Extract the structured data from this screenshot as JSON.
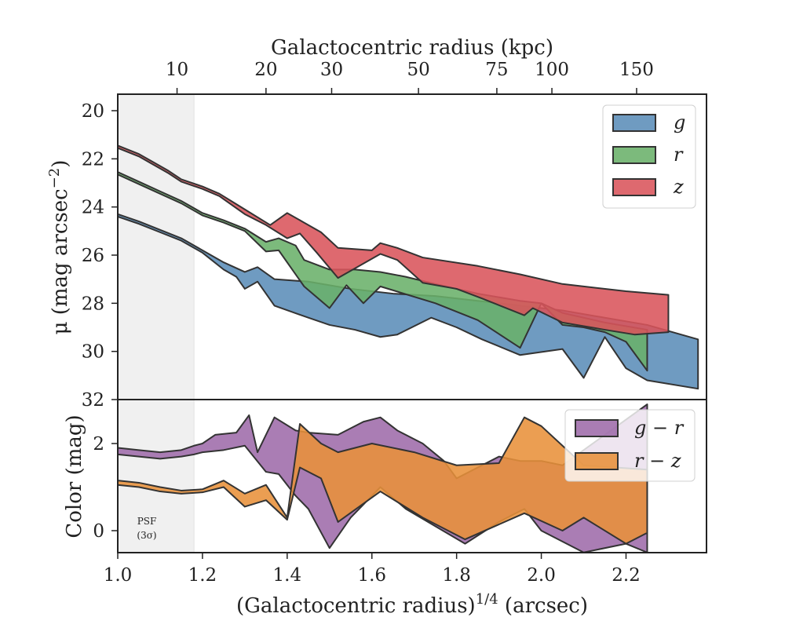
{
  "chart_data": [
    {
      "panel": "top",
      "type": "area",
      "top_axis_title": "Galactocentric radius (kpc)",
      "top_axis_ticks": [
        "10",
        "20",
        "30",
        "50",
        "75",
        "100",
        "150"
      ],
      "top_axis_tick_x": [
        1.14,
        1.35,
        1.505,
        1.71,
        1.895,
        2.025,
        2.225
      ],
      "ylabel": "μ (mag arcsec⁻²)",
      "ylim": [
        32,
        19.3
      ],
      "xlim": [
        1.0,
        2.39
      ],
      "y_ticks": [
        "20",
        "22",
        "24",
        "26",
        "28",
        "30",
        "32"
      ],
      "y_tick_values": [
        20,
        22,
        24,
        26,
        28,
        30,
        32
      ],
      "psf_region_x": [
        1.0,
        1.18
      ],
      "legend_position": "upper right",
      "series": [
        {
          "name": "g",
          "color": "#5b8db8",
          "upper": [
            [
              1.0,
              24.3
            ],
            [
              1.05,
              24.6
            ],
            [
              1.1,
              24.95
            ],
            [
              1.15,
              25.3
            ],
            [
              1.2,
              25.8
            ],
            [
              1.25,
              26.3
            ],
            [
              1.3,
              26.7
            ],
            [
              1.33,
              26.5
            ],
            [
              1.37,
              27.0
            ],
            [
              1.45,
              27.1
            ],
            [
              1.55,
              27.4
            ],
            [
              1.65,
              27.6
            ],
            [
              1.75,
              27.7
            ],
            [
              1.85,
              27.9
            ],
            [
              1.95,
              28.1
            ],
            [
              2.05,
              28.3
            ],
            [
              2.15,
              28.6
            ],
            [
              2.25,
              28.9
            ],
            [
              2.37,
              29.5
            ]
          ],
          "lower": [
            [
              1.0,
              24.4
            ],
            [
              1.05,
              24.7
            ],
            [
              1.1,
              25.05
            ],
            [
              1.15,
              25.4
            ],
            [
              1.2,
              25.9
            ],
            [
              1.25,
              26.6
            ],
            [
              1.28,
              26.9
            ],
            [
              1.3,
              27.4
            ],
            [
              1.33,
              27.1
            ],
            [
              1.37,
              28.1
            ],
            [
              1.45,
              28.6
            ],
            [
              1.5,
              28.9
            ],
            [
              1.56,
              29.1
            ],
            [
              1.62,
              29.4
            ],
            [
              1.66,
              29.3
            ],
            [
              1.74,
              28.6
            ],
            [
              1.8,
              29.0
            ],
            [
              1.86,
              29.5
            ],
            [
              1.95,
              30.15
            ],
            [
              2.05,
              29.9
            ],
            [
              2.1,
              31.1
            ],
            [
              2.15,
              29.4
            ],
            [
              2.2,
              30.7
            ],
            [
              2.25,
              31.2
            ],
            [
              2.37,
              31.55
            ]
          ]
        },
        {
          "name": "r",
          "color": "#6ab06a",
          "upper": [
            [
              1.0,
              22.55
            ],
            [
              1.05,
              22.95
            ],
            [
              1.1,
              23.35
            ],
            [
              1.15,
              23.75
            ],
            [
              1.2,
              24.25
            ],
            [
              1.25,
              24.55
            ],
            [
              1.3,
              24.9
            ],
            [
              1.35,
              25.45
            ],
            [
              1.38,
              25.3
            ],
            [
              1.42,
              25.6
            ],
            [
              1.44,
              26.2
            ],
            [
              1.5,
              26.6
            ],
            [
              1.56,
              26.6
            ],
            [
              1.62,
              26.7
            ],
            [
              1.68,
              26.9
            ],
            [
              1.75,
              27.2
            ],
            [
              1.85,
              27.6
            ],
            [
              1.95,
              27.9
            ],
            [
              2.0,
              28.0
            ],
            [
              2.05,
              28.4
            ],
            [
              2.15,
              28.8
            ],
            [
              2.25,
              29.1
            ]
          ],
          "lower": [
            [
              1.0,
              22.65
            ],
            [
              1.05,
              23.05
            ],
            [
              1.1,
              23.45
            ],
            [
              1.15,
              23.85
            ],
            [
              1.2,
              24.35
            ],
            [
              1.25,
              24.65
            ],
            [
              1.3,
              25.0
            ],
            [
              1.35,
              25.85
            ],
            [
              1.38,
              25.8
            ],
            [
              1.44,
              27.3
            ],
            [
              1.5,
              28.2
            ],
            [
              1.54,
              27.25
            ],
            [
              1.58,
              28.0
            ],
            [
              1.62,
              27.3
            ],
            [
              1.75,
              28.0
            ],
            [
              1.85,
              28.7
            ],
            [
              1.95,
              29.85
            ],
            [
              2.0,
              28.0
            ],
            [
              2.05,
              28.9
            ],
            [
              2.1,
              29.0
            ],
            [
              2.15,
              29.2
            ],
            [
              2.2,
              29.6
            ],
            [
              2.25,
              30.8
            ]
          ]
        },
        {
          "name": "z",
          "color": "#d9545b",
          "upper": [
            [
              1.0,
              21.45
            ],
            [
              1.05,
              21.8
            ],
            [
              1.08,
              22.1
            ],
            [
              1.12,
              22.5
            ],
            [
              1.15,
              22.85
            ],
            [
              1.2,
              23.15
            ],
            [
              1.24,
              23.45
            ],
            [
              1.3,
              24.1
            ],
            [
              1.36,
              24.75
            ],
            [
              1.4,
              24.25
            ],
            [
              1.44,
              24.65
            ],
            [
              1.48,
              25.05
            ],
            [
              1.52,
              25.7
            ],
            [
              1.6,
              25.8
            ],
            [
              1.62,
              25.5
            ],
            [
              1.66,
              25.7
            ],
            [
              1.72,
              26.1
            ],
            [
              1.85,
              26.45
            ],
            [
              1.95,
              26.8
            ],
            [
              2.05,
              27.2
            ],
            [
              2.2,
              27.5
            ],
            [
              2.3,
              27.65
            ]
          ],
          "lower": [
            [
              1.0,
              21.55
            ],
            [
              1.05,
              21.9
            ],
            [
              1.08,
              22.2
            ],
            [
              1.12,
              22.6
            ],
            [
              1.15,
              22.95
            ],
            [
              1.2,
              23.25
            ],
            [
              1.24,
              23.55
            ],
            [
              1.3,
              24.3
            ],
            [
              1.35,
              24.75
            ],
            [
              1.4,
              25.3
            ],
            [
              1.43,
              25.1
            ],
            [
              1.47,
              25.9
            ],
            [
              1.52,
              26.95
            ],
            [
              1.56,
              26.55
            ],
            [
              1.62,
              25.95
            ],
            [
              1.66,
              26.2
            ],
            [
              1.72,
              27.15
            ],
            [
              1.8,
              27.4
            ],
            [
              1.86,
              27.8
            ],
            [
              1.96,
              28.5
            ],
            [
              1.98,
              28.2
            ],
            [
              2.05,
              28.8
            ],
            [
              2.15,
              29.1
            ],
            [
              2.22,
              29.3
            ],
            [
              2.3,
              29.2
            ]
          ]
        }
      ],
      "legend": [
        "g",
        "r",
        "z"
      ]
    },
    {
      "panel": "bottom",
      "type": "area",
      "ylabel": "Color (mag)",
      "xlabel": "(Galactocentric radius)^1/4 (arcsec)",
      "ylim": [
        -0.5,
        3.0
      ],
      "xlim": [
        1.0,
        2.39
      ],
      "x_ticks": [
        "1.0",
        "1.2",
        "1.4",
        "1.6",
        "1.8",
        "2.0",
        "2.2"
      ],
      "x_tick_values": [
        1.0,
        1.2,
        1.4,
        1.6,
        1.8,
        2.0,
        2.2
      ],
      "y_ticks": [
        "0",
        "2"
      ],
      "y_tick_values": [
        0,
        2
      ],
      "psf_label": [
        "PSF",
        "(3σ)"
      ],
      "legend_position": "upper right",
      "series": [
        {
          "name": "g − r",
          "color": "#9e6baa",
          "upper": [
            [
              1.0,
              1.9
            ],
            [
              1.05,
              1.85
            ],
            [
              1.1,
              1.8
            ],
            [
              1.15,
              1.85
            ],
            [
              1.18,
              1.95
            ],
            [
              1.2,
              2.0
            ],
            [
              1.23,
              2.2
            ],
            [
              1.28,
              2.25
            ],
            [
              1.31,
              2.65
            ],
            [
              1.33,
              1.8
            ],
            [
              1.37,
              2.6
            ],
            [
              1.42,
              2.3
            ],
            [
              1.45,
              2.25
            ],
            [
              1.52,
              2.2
            ],
            [
              1.58,
              2.5
            ],
            [
              1.62,
              2.6
            ],
            [
              1.66,
              2.3
            ],
            [
              1.72,
              2.0
            ],
            [
              1.77,
              1.6
            ],
            [
              1.8,
              1.2
            ],
            [
              1.9,
              1.7
            ],
            [
              1.95,
              1.6
            ],
            [
              2.0,
              1.6
            ],
            [
              2.05,
              1.5
            ],
            [
              2.15,
              2.2
            ],
            [
              2.25,
              2.9
            ]
          ],
          "lower": [
            [
              1.0,
              1.75
            ],
            [
              1.05,
              1.7
            ],
            [
              1.1,
              1.65
            ],
            [
              1.15,
              1.7
            ],
            [
              1.18,
              1.75
            ],
            [
              1.2,
              1.8
            ],
            [
              1.25,
              1.85
            ],
            [
              1.3,
              1.95
            ],
            [
              1.35,
              1.35
            ],
            [
              1.38,
              1.3
            ],
            [
              1.42,
              0.8
            ],
            [
              1.45,
              0.5
            ],
            [
              1.5,
              -0.4
            ],
            [
              1.55,
              0.3
            ],
            [
              1.62,
              1.0
            ],
            [
              1.68,
              0.5
            ],
            [
              1.82,
              -0.3
            ],
            [
              1.9,
              0.2
            ],
            [
              1.96,
              0.5
            ],
            [
              2.0,
              0.0
            ],
            [
              2.1,
              -0.5
            ],
            [
              2.2,
              -0.3
            ],
            [
              2.25,
              -0.5
            ]
          ]
        },
        {
          "name": "r − z",
          "color": "#e8913a",
          "upper": [
            [
              1.0,
              1.15
            ],
            [
              1.05,
              1.1
            ],
            [
              1.1,
              1.0
            ],
            [
              1.15,
              0.92
            ],
            [
              1.2,
              0.95
            ],
            [
              1.25,
              1.15
            ],
            [
              1.3,
              0.85
            ],
            [
              1.35,
              1.05
            ],
            [
              1.4,
              0.3
            ],
            [
              1.43,
              2.45
            ],
            [
              1.48,
              2.0
            ],
            [
              1.52,
              1.8
            ],
            [
              1.6,
              2.0
            ],
            [
              1.7,
              1.8
            ],
            [
              1.8,
              1.5
            ],
            [
              1.9,
              1.55
            ],
            [
              1.96,
              2.6
            ],
            [
              2.0,
              2.4
            ],
            [
              2.1,
              1.5
            ],
            [
              2.25,
              1.4
            ]
          ],
          "lower": [
            [
              1.0,
              1.05
            ],
            [
              1.05,
              1.0
            ],
            [
              1.1,
              0.9
            ],
            [
              1.15,
              0.85
            ],
            [
              1.2,
              0.88
            ],
            [
              1.25,
              1.0
            ],
            [
              1.3,
              0.55
            ],
            [
              1.35,
              0.7
            ],
            [
              1.4,
              0.25
            ],
            [
              1.43,
              1.45
            ],
            [
              1.48,
              1.2
            ],
            [
              1.52,
              0.2
            ],
            [
              1.62,
              0.9
            ],
            [
              1.72,
              0.3
            ],
            [
              1.82,
              -0.2
            ],
            [
              1.96,
              0.4
            ],
            [
              2.05,
              0.0
            ],
            [
              2.1,
              0.3
            ],
            [
              2.2,
              -0.3
            ],
            [
              2.25,
              -0.05
            ]
          ]
        }
      ],
      "legend": [
        "g − r",
        "r − z"
      ]
    }
  ]
}
